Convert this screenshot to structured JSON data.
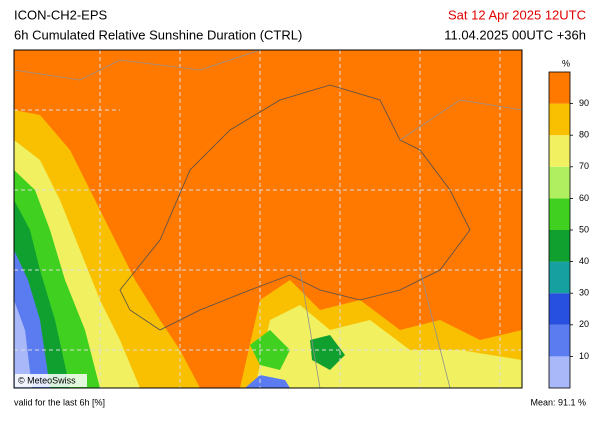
{
  "header": {
    "model": "ICON-CH2-EPS",
    "product": "6h Cumulated Relative Sunshine Duration (CTRL)",
    "valid_time": "Sat 12 Apr 2025 12UTC",
    "run": "11.04.2025 00UTC +36h"
  },
  "map": {
    "credit": "© MeteoSwiss"
  },
  "colorbar": {
    "unit": "%",
    "range": [
      0,
      100
    ],
    "ticks": [
      10,
      20,
      30,
      40,
      50,
      60,
      70,
      80,
      90
    ],
    "colors": [
      "#a8b8f8",
      "#5a7cf0",
      "#2850e0",
      "#16a0a0",
      "#10a030",
      "#40d020",
      "#b0f060",
      "#f0f060",
      "#f8c000",
      "#ff7800"
    ]
  },
  "footer": {
    "note": "valid for the last 6h [%]",
    "mean": "Mean:  91.1 %"
  }
}
